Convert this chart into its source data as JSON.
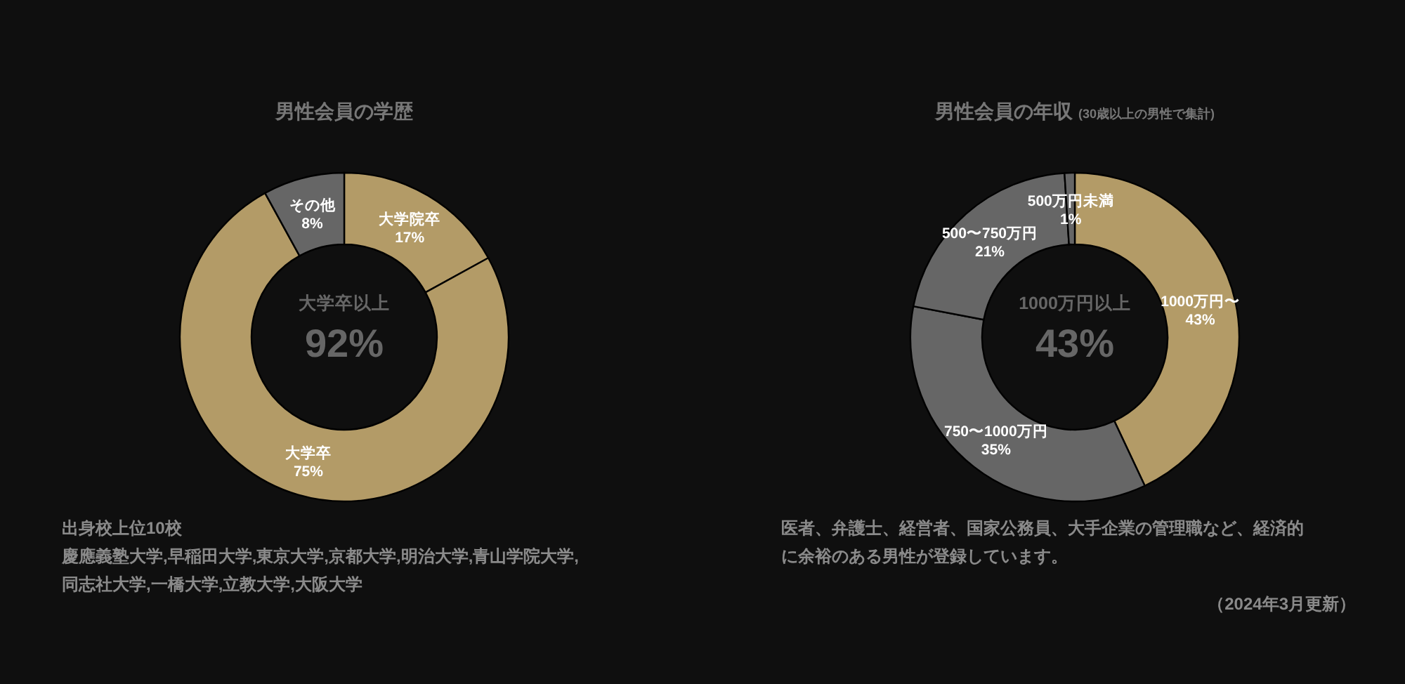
{
  "chart_data": [
    {
      "type": "donut",
      "title": "男性会員の学歴",
      "categories": [
        "大学院卒",
        "大学卒",
        "その他"
      ],
      "values": [
        17,
        75,
        8
      ],
      "value_labels": [
        "17%",
        "75%",
        "8%"
      ],
      "colors": [
        "#b39b67",
        "#b39b67",
        "#666666"
      ],
      "annotations": [
        "大学卒以上",
        "92%",
        "出身校上位10校",
        "慶應義塾大学,早稲田大学,東京大学,京都大学,明治大学,青山学院大学,同志社大学,一橋大学,立教大学,大阪大学"
      ]
    },
    {
      "type": "donut",
      "title": "男性会員の年収",
      "subtitle": "(30歳以上の男性で集計)",
      "categories": [
        "1000万円〜",
        "750〜1000万円",
        "500〜750万円",
        "500万円未満"
      ],
      "values": [
        43,
        35,
        21,
        1
      ],
      "value_labels": [
        "43%",
        "35%",
        "21%",
        "1%"
      ],
      "colors": [
        "#b39b67",
        "#666666",
        "#666666",
        "#666666"
      ],
      "annotations": [
        "1000万円以上",
        "43%",
        "医者、弁護士、経営者、国家公務員、大手企業の管理職など、経済的に余裕のある男性が登録しています。",
        "（2024年3月更新）"
      ]
    }
  ]
}
